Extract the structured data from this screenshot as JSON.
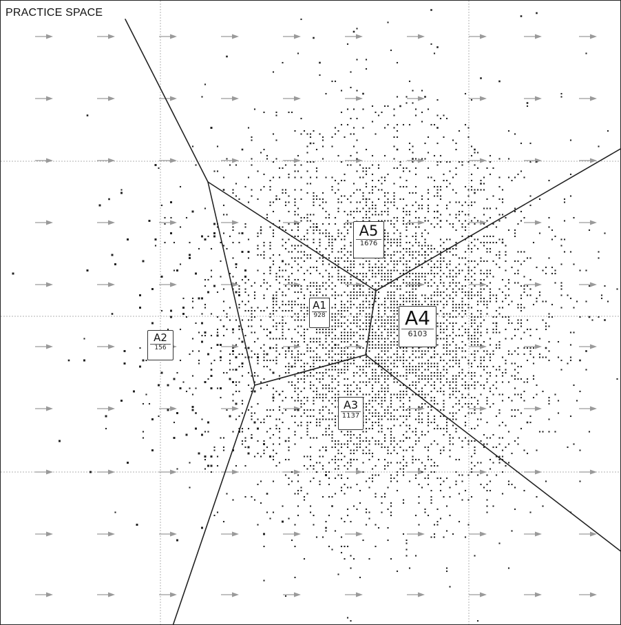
{
  "title": "PRACTICE SPACE",
  "colors": {
    "background": "#ffffff",
    "boundary_line": "#222222",
    "grid_line": "#b0b0b0",
    "arrow": "#9a9a9a",
    "dot": "#222222"
  },
  "grid": {
    "dashed_lines": true,
    "arrow_direction": "right"
  },
  "regions": [
    {
      "id": "A1",
      "name": "A1",
      "count": "928"
    },
    {
      "id": "A2",
      "name": "A2",
      "count": "156"
    },
    {
      "id": "A3",
      "name": "A3",
      "count": "1137"
    },
    {
      "id": "A4",
      "name": "A4",
      "count": "6103"
    },
    {
      "id": "A5",
      "name": "A5",
      "count": "1676"
    }
  ]
}
